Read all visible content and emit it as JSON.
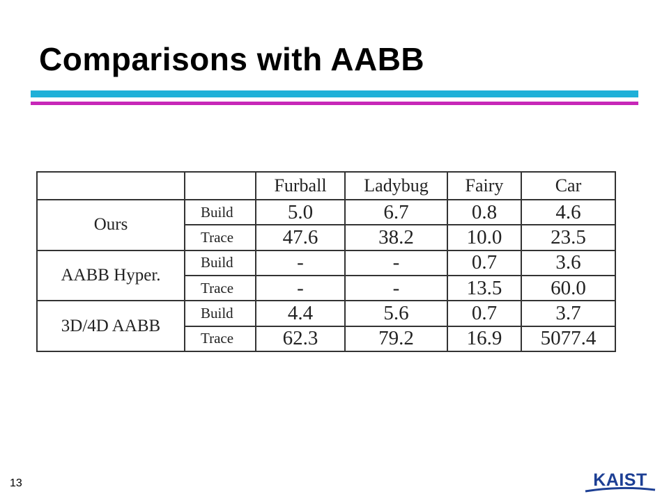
{
  "slide": {
    "title": "Comparisons with AABB",
    "page_number": "13",
    "logo_text": "KAIST"
  },
  "table": {
    "columns": [
      "Furball",
      "Ladybug",
      "Fairy",
      "Car"
    ],
    "groups": [
      {
        "name": "Ours",
        "rows": [
          {
            "label": "Build",
            "values": [
              "5.0",
              "6.7",
              "0.8",
              "4.6"
            ]
          },
          {
            "label": "Trace",
            "values": [
              "47.6",
              "38.2",
              "10.0",
              "23.5"
            ]
          }
        ]
      },
      {
        "name": "AABB Hyper.",
        "rows": [
          {
            "label": "Build",
            "values": [
              "-",
              "-",
              "0.7",
              "3.6"
            ]
          },
          {
            "label": "Trace",
            "values": [
              "-",
              "-",
              "13.5",
              "60.0"
            ]
          }
        ]
      },
      {
        "name": "3D/4D AABB",
        "rows": [
          {
            "label": "Build",
            "values": [
              "4.4",
              "5.6",
              "0.7",
              "3.7"
            ]
          },
          {
            "label": "Trace",
            "values": [
              "62.3",
              "79.2",
              "16.9",
              "5077.4"
            ]
          }
        ]
      }
    ]
  },
  "colors": {
    "bar_top": "#1fb0d8",
    "bar_bottom": "#c727b8",
    "logo_blue": "#1d3f94"
  }
}
